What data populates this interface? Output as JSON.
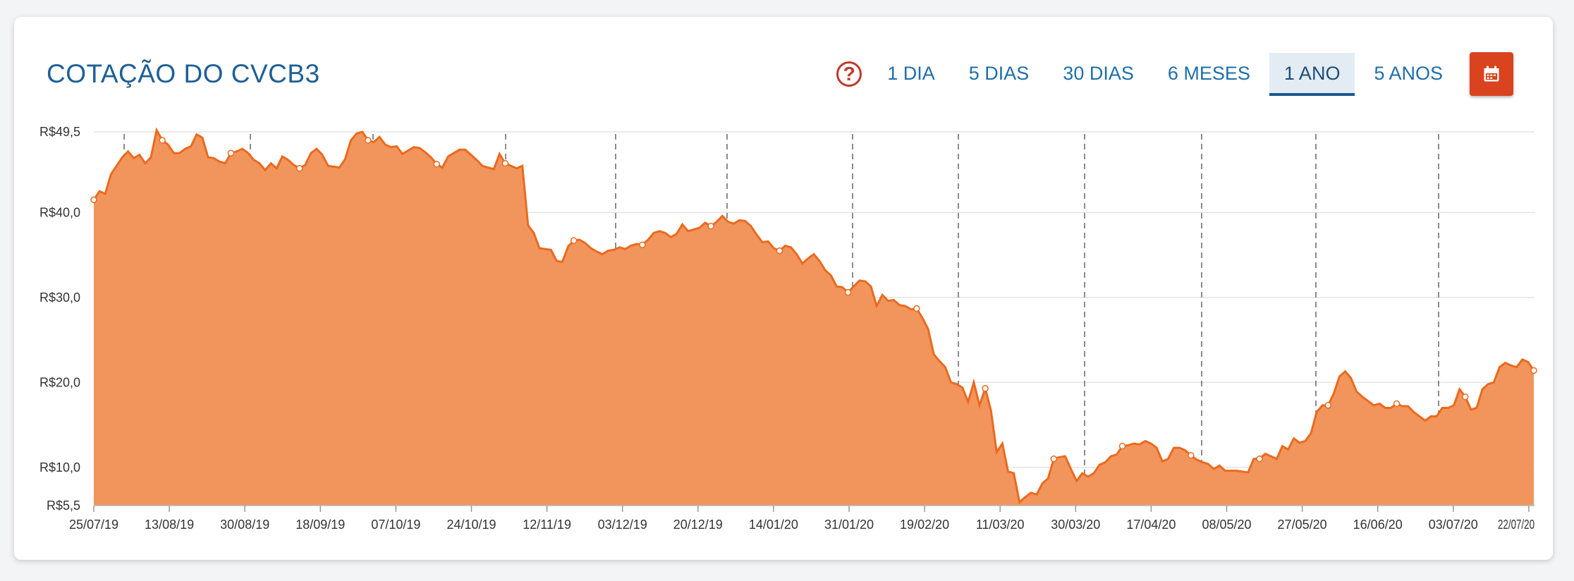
{
  "header": {
    "title": "COTAÇÃO DO CVCB3",
    "help_symbol": "?",
    "ranges": [
      "1 DIA",
      "5 DIAS",
      "30 DIAS",
      "6 MESES",
      "1 ANO",
      "5 ANOS"
    ],
    "active_range": "1 ANO"
  },
  "colors": {
    "area": "#f2955c",
    "line": "#ea6a1f",
    "title": "#1e5f96",
    "tab": "#1e6fa8",
    "calendar": "#d9431e",
    "help": "#c0392b"
  },
  "icons": {
    "help": "question-circle-icon",
    "calendar": "calendar-icon"
  },
  "chart_data": {
    "type": "area",
    "title": "",
    "xlabel": "",
    "ylabel": "",
    "ylim": [
      5.5,
      49.5
    ],
    "grid": true,
    "y_ticks": [
      {
        "value": 49.5,
        "label": "R$49,5"
      },
      {
        "value": 40,
        "label": "R$40,0"
      },
      {
        "value": 30,
        "label": "R$30,0"
      },
      {
        "value": 20,
        "label": "R$20,0"
      },
      {
        "value": 10,
        "label": "R$10,0"
      },
      {
        "value": 5.5,
        "label": "R$5,5"
      }
    ],
    "x_ticks": [
      "25/07/19",
      "13/08/19",
      "30/08/19",
      "18/09/19",
      "07/10/19",
      "24/10/19",
      "12/11/19",
      "03/12/19",
      "20/12/19",
      "14/01/20",
      "31/01/20",
      "19/02/20",
      "11/03/20",
      "30/03/20",
      "17/04/20",
      "08/05/20",
      "27/05/20",
      "16/06/20",
      "03/07/20",
      "22/07/20"
    ],
    "month_markers": [
      "01/08/19",
      "01/09/19",
      "01/10/19",
      "01/11/19",
      "01/12/19",
      "01/01/20",
      "01/02/20",
      "01/03/20",
      "01/04/20",
      "01/05/20",
      "01/06/20",
      "01/07/20"
    ],
    "series": [
      {
        "values": [
          41.5,
          42.5,
          42.2,
          44.5,
          45.5,
          46.5,
          47.2,
          46.4,
          46.8,
          45.8,
          46.5,
          49.7,
          48.5,
          48.0,
          47.0,
          47.0,
          47.5,
          47.8,
          49.2,
          48.8,
          46.5,
          46.4,
          46.0,
          45.8,
          47.0,
          47.2,
          47.5,
          47.0,
          46.2,
          45.8,
          45.0,
          45.8,
          45.2,
          46.6,
          46.2,
          45.6,
          45.2,
          45.6,
          47.0,
          47.5,
          46.8,
          45.5,
          45.4,
          45.3,
          46.3,
          48.5,
          49.3,
          49.5,
          48.5,
          48.3,
          48.9,
          48.0,
          47.7,
          47.8,
          46.9,
          47.3,
          47.7,
          47.6,
          47.1,
          46.5,
          45.7,
          45.3,
          46.6,
          47.0,
          47.4,
          47.4,
          46.8,
          46.2,
          45.5,
          45.3,
          45.1,
          46.9,
          45.8,
          45.5,
          45.2,
          45.5,
          38.5,
          37.6,
          35.8,
          35.7,
          35.6,
          34.3,
          34.2,
          36.0,
          36.7,
          36.8,
          36.4,
          35.8,
          35.4,
          35.1,
          35.5,
          35.6,
          35.9,
          35.7,
          36.1,
          36.3,
          36.2,
          36.8,
          37.6,
          37.8,
          37.6,
          37.1,
          37.5,
          38.6,
          37.8,
          38.0,
          38.2,
          38.8,
          38.4,
          38.9,
          39.6,
          38.9,
          38.7,
          39.1,
          39.0,
          38.4,
          37.4,
          36.5,
          36.6,
          35.8,
          35.5,
          36.1,
          35.9,
          35.1,
          34.0,
          34.6,
          35.1,
          34.3,
          33.2,
          32.6,
          31.3,
          31.2,
          30.6,
          31.3,
          32.0,
          31.9,
          31.3,
          29.0,
          30.3,
          29.6,
          29.7,
          29.1,
          29.0,
          28.6,
          28.7,
          27.6,
          26.3,
          23.3,
          22.5,
          21.8,
          20.0,
          19.8,
          19.4,
          17.7,
          20.0,
          17.3,
          19.3,
          16.7,
          11.8,
          12.8,
          9.5,
          9.3,
          5.9,
          6.5,
          7.0,
          6.8,
          8.1,
          8.7,
          11.0,
          11.2,
          11.3,
          9.8,
          8.4,
          9.3,
          8.9,
          9.3,
          10.3,
          10.6,
          11.3,
          11.5,
          12.5,
          12.6,
          12.8,
          12.7,
          13.1,
          12.8,
          12.3,
          10.7,
          11.0,
          12.3,
          12.3,
          12.0,
          11.4,
          10.9,
          10.6,
          10.4,
          9.8,
          10.2,
          9.6,
          9.6,
          9.6,
          9.5,
          9.4,
          11.0,
          11.0,
          11.6,
          11.3,
          11.0,
          12.5,
          12.1,
          13.4,
          12.9,
          13.1,
          14.0,
          16.5,
          17.3,
          17.3,
          18.7,
          20.7,
          21.3,
          20.5,
          18.9,
          18.3,
          17.8,
          17.3,
          17.5,
          17.0,
          17.0,
          17.5,
          17.2,
          17.2,
          16.5,
          16.0,
          15.5,
          16.0,
          16.0,
          17.0,
          17.0,
          17.3,
          19.2,
          18.3,
          16.8,
          17.0,
          19.2,
          19.8,
          20.0,
          21.8,
          22.3,
          22.0,
          21.8,
          22.7,
          22.4,
          21.4
        ],
        "markers": [
          0,
          12,
          24,
          36,
          48,
          60,
          72,
          84,
          96,
          108,
          120,
          132,
          144,
          156,
          168,
          180,
          192,
          204,
          216,
          228,
          240,
          252
        ]
      }
    ]
  }
}
